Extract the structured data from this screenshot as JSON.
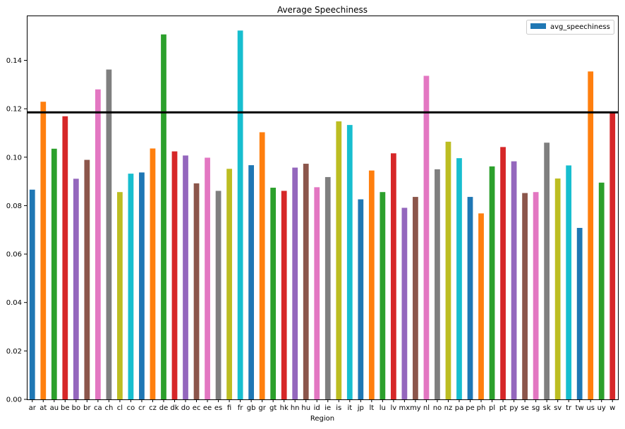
{
  "chart_data": {
    "type": "bar",
    "title": "Average Speechiness",
    "xlabel": "Region",
    "ylabel": "",
    "ylim": [
      0,
      0.1585
    ],
    "yticks": [
      0.0,
      0.02,
      0.04,
      0.06,
      0.08,
      0.1,
      0.12,
      0.14
    ],
    "ytick_labels": [
      "0.00",
      "0.02",
      "0.04",
      "0.06",
      "0.08",
      "0.10",
      "0.12",
      "0.14"
    ],
    "grid": false,
    "legend_placement": "top-right",
    "legend": [
      "avg_speechiness"
    ],
    "legend_color": "#1f77b4",
    "reference_line": {
      "value": 0.1185,
      "color": "#000000"
    },
    "palette": [
      "#1f77b4",
      "#ff7f0e",
      "#2ca02c",
      "#d62728",
      "#9467bd",
      "#8c564b",
      "#e377c2",
      "#7f7f7f",
      "#bcbd22",
      "#17becf"
    ],
    "categories": [
      "ar",
      "at",
      "au",
      "be",
      "bo",
      "br",
      "ca",
      "ch",
      "cl",
      "co",
      "cr",
      "cz",
      "de",
      "dk",
      "do",
      "ec",
      "ee",
      "es",
      "fi",
      "fr",
      "gb",
      "gr",
      "gt",
      "hk",
      "hn",
      "hu",
      "id",
      "ie",
      "is",
      "it",
      "jp",
      "lt",
      "lu",
      "lv",
      "mx",
      "my",
      "nl",
      "no",
      "nz",
      "pa",
      "pe",
      "ph",
      "pl",
      "pt",
      "py",
      "se",
      "sg",
      "sk",
      "sv",
      "tr",
      "tw",
      "us",
      "uy",
      "w"
    ],
    "values": [
      0.0866,
      0.1229,
      0.1035,
      0.1169,
      0.0911,
      0.0989,
      0.128,
      0.1362,
      0.0856,
      0.0932,
      0.0937,
      0.1036,
      0.1507,
      0.1024,
      0.1007,
      0.0892,
      0.0998,
      0.0861,
      0.0952,
      0.1523,
      0.0967,
      0.1103,
      0.0874,
      0.0861,
      0.0957,
      0.0973,
      0.0876,
      0.0918,
      0.1148,
      0.1133,
      0.0826,
      0.0945,
      0.0856,
      0.1016,
      0.0791,
      0.0836,
      0.1336,
      0.095,
      0.1064,
      0.0996,
      0.0836,
      0.0768,
      0.0962,
      0.1042,
      0.0983,
      0.0852,
      0.0856,
      0.106,
      0.0912,
      0.0966,
      0.0708,
      0.1354,
      0.0895,
      0.1186
    ]
  }
}
